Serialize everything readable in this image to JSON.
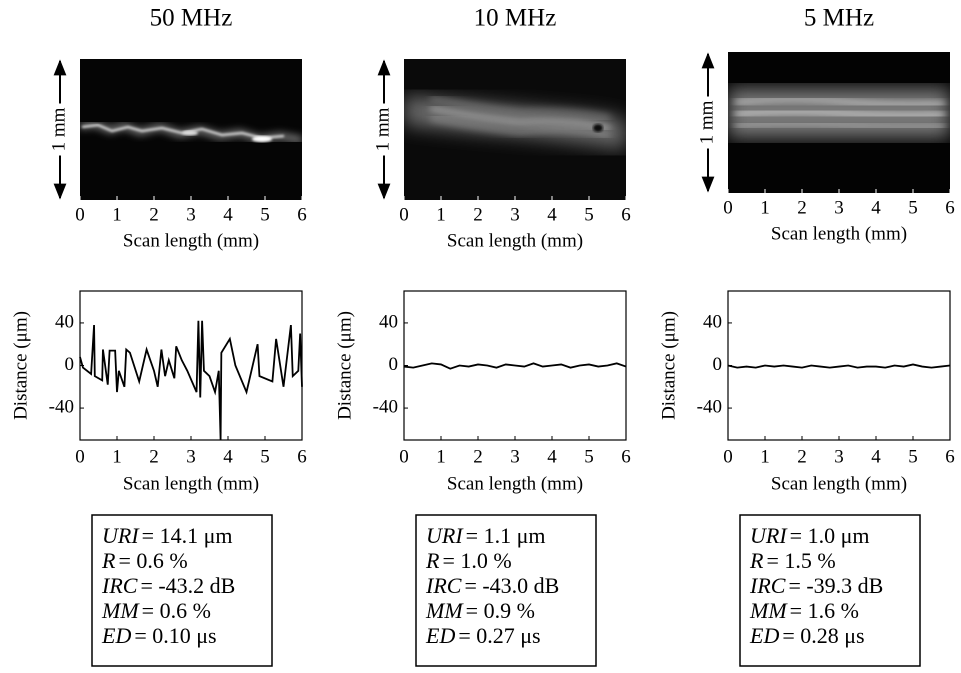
{
  "panels": [
    {
      "title": "50 MHz",
      "image": {
        "scale_label": "1 mm",
        "xlabel": "Scan length (mm)",
        "xlim": [
          0,
          6
        ],
        "xticks": [
          0,
          1,
          2,
          3,
          4,
          5,
          6
        ]
      },
      "stats": [
        {
          "name": "URI",
          "value": "= 14.1 μm"
        },
        {
          "name": "R",
          "value": "= 0.6 %"
        },
        {
          "name": "IRC",
          "value": "= -43.2 dB"
        },
        {
          "name": "MM",
          "value": "= 0.6 %"
        },
        {
          "name": "ED",
          "value": "= 0.10 μs"
        }
      ]
    },
    {
      "title": "10 MHz",
      "image": {
        "scale_label": "1 mm",
        "xlabel": "Scan length (mm)",
        "xlim": [
          0,
          6
        ],
        "xticks": [
          0,
          1,
          2,
          3,
          4,
          5,
          6
        ]
      },
      "stats": [
        {
          "name": "URI",
          "value": "= 1.1 μm"
        },
        {
          "name": "R",
          "value": "= 1.0 %"
        },
        {
          "name": "IRC",
          "value": "= -43.0 dB"
        },
        {
          "name": "MM",
          "value": "= 0.9 %"
        },
        {
          "name": "ED",
          "value": "= 0.27 μs"
        }
      ]
    },
    {
      "title": "5 MHz",
      "image": {
        "scale_label": "1 mm",
        "xlabel": "Scan length (mm)",
        "xlim": [
          0,
          6
        ],
        "xticks": [
          0,
          1,
          2,
          3,
          4,
          5,
          6
        ]
      },
      "stats": [
        {
          "name": "URI",
          "value": "= 1.0 μm"
        },
        {
          "name": "R",
          "value": "= 1.5 %"
        },
        {
          "name": "IRC",
          "value": "= -39.3 dB"
        },
        {
          "name": "MM",
          "value": "= 1.6 %"
        },
        {
          "name": "ED",
          "value": "= 0.28 μs"
        }
      ]
    }
  ],
  "chart_data": [
    {
      "type": "line",
      "xlabel": "Scan length (mm)",
      "ylabel": "Distance (μm)",
      "xlim": [
        0,
        6
      ],
      "xticks": [
        0,
        1,
        2,
        3,
        4,
        5,
        6
      ],
      "ylim": [
        -70,
        70
      ],
      "yticks": [
        40,
        0,
        -40
      ],
      "x": [
        0,
        0.08,
        0.3,
        0.38,
        0.4,
        0.6,
        0.62,
        0.75,
        0.8,
        0.95,
        1.0,
        1.05,
        1.2,
        1.25,
        1.35,
        1.6,
        1.8,
        2.0,
        2.1,
        2.2,
        2.3,
        2.4,
        2.55,
        2.6,
        2.75,
        2.9,
        3.15,
        3.2,
        3.25,
        3.3,
        3.35,
        3.5,
        3.65,
        3.75,
        3.8,
        3.82,
        4.05,
        4.2,
        4.5,
        4.8,
        4.85,
        5.2,
        5.3,
        5.5,
        5.7,
        5.75,
        5.9,
        5.95,
        6.0
      ],
      "series": [
        {
          "color": "#000000",
          "values": [
            8,
            -2,
            -8,
            38,
            -10,
            -14,
            15,
            -18,
            14,
            14,
            -25,
            -5,
            -20,
            15,
            12,
            -15,
            15,
            -5,
            -20,
            15,
            -10,
            5,
            -12,
            18,
            5,
            -5,
            -25,
            42,
            -30,
            42,
            -5,
            -10,
            -25,
            -5,
            -70,
            12,
            25,
            0,
            -25,
            20,
            -10,
            -15,
            25,
            -20,
            38,
            -10,
            -5,
            30,
            -20
          ]
        }
      ]
    },
    {
      "type": "line",
      "xlabel": "Scan length (mm)",
      "ylabel": "Distance (μm)",
      "xlim": [
        0,
        6
      ],
      "xticks": [
        0,
        1,
        2,
        3,
        4,
        5,
        6
      ],
      "ylim": [
        -70,
        70
      ],
      "yticks": [
        40,
        0,
        -40
      ],
      "x": [
        0,
        0.25,
        0.5,
        0.75,
        1,
        1.25,
        1.5,
        1.75,
        2,
        2.25,
        2.5,
        2.75,
        3,
        3.25,
        3.5,
        3.75,
        4,
        4.25,
        4.5,
        4.75,
        5,
        5.25,
        5.5,
        5.75,
        6
      ],
      "series": [
        {
          "color": "#000000",
          "values": [
            -1,
            -2,
            0,
            2,
            1,
            -3,
            0,
            -1,
            1,
            0,
            -2,
            1,
            0,
            -1,
            2,
            -1,
            0,
            1,
            -2,
            0,
            1,
            -1,
            0,
            2,
            -1
          ]
        }
      ]
    },
    {
      "type": "line",
      "xlabel": "Scan length (mm)",
      "ylabel": "Distance (μm)",
      "xlim": [
        0,
        6
      ],
      "xticks": [
        0,
        1,
        2,
        3,
        4,
        5,
        6
      ],
      "ylim": [
        -70,
        70
      ],
      "yticks": [
        40,
        0,
        -40
      ],
      "x": [
        0,
        0.25,
        0.5,
        0.75,
        1,
        1.25,
        1.5,
        1.75,
        2,
        2.25,
        2.5,
        2.75,
        3,
        3.25,
        3.5,
        3.75,
        4,
        4.25,
        4.5,
        4.75,
        5,
        5.25,
        5.5,
        5.75,
        6
      ],
      "series": [
        {
          "color": "#000000",
          "values": [
            0,
            -2,
            -1,
            -2,
            0,
            -1,
            0,
            -1,
            -2,
            0,
            -1,
            -2,
            -1,
            0,
            -2,
            -1,
            -1,
            -2,
            0,
            -1,
            1,
            -1,
            -2,
            -1,
            0
          ]
        }
      ]
    }
  ]
}
